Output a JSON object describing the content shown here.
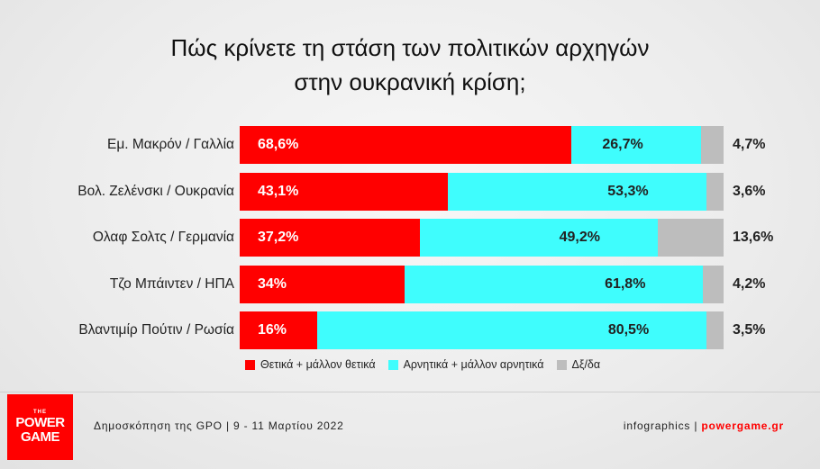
{
  "chart_data": {
    "type": "bar",
    "orientation": "horizontal",
    "stacked": true,
    "title_lines": [
      "Πώς κρίνετε τη στάση των πολιτικών αρχηγών",
      "στην ουκρανική κρίση;"
    ],
    "categories": [
      "Εμ. Μακρόν / Γαλλία",
      "Βολ. Ζελένσκι / Ουκρανία",
      "Ολαφ Σολτς / Γερμανία",
      "Τζο Μπάιντεν / ΗΠΑ",
      "Βλαντιμίρ Πούτιν / Ρωσία"
    ],
    "series": [
      {
        "name": "Θετικά + μάλλον θετικά",
        "color": "#ff0000",
        "values": [
          68.6,
          43.1,
          37.2,
          34,
          16
        ],
        "labels": [
          "68,6%",
          "43,1%",
          "37,2%",
          "34%",
          "16%"
        ]
      },
      {
        "name": "Αρνητικά + μάλλον αρνητικά",
        "color": "#3ffdfd",
        "values": [
          26.7,
          53.3,
          49.2,
          61.8,
          80.5
        ],
        "labels": [
          "26,7%",
          "53,3%",
          "49,2%",
          "61,8%",
          "80,5%"
        ]
      },
      {
        "name": "Δξ/δα",
        "color": "#bdbdbd",
        "values": [
          4.7,
          3.6,
          13.6,
          4.2,
          3.5
        ],
        "labels": [
          "4,7%",
          "3,6%",
          "13,6%",
          "4,2%",
          "3,5%"
        ]
      }
    ],
    "xlim": [
      0,
      100
    ],
    "legend_position": "bottom",
    "grid": false
  },
  "footer": {
    "source": "Δημοσκόπηση της GPO | 9 - 11 Μαρτίου 2022",
    "credit_prefix": "infographics | ",
    "credit_site": "powergame.gr"
  },
  "logo": {
    "line1": "THE",
    "line2": "POWER",
    "line3": "GAME"
  }
}
